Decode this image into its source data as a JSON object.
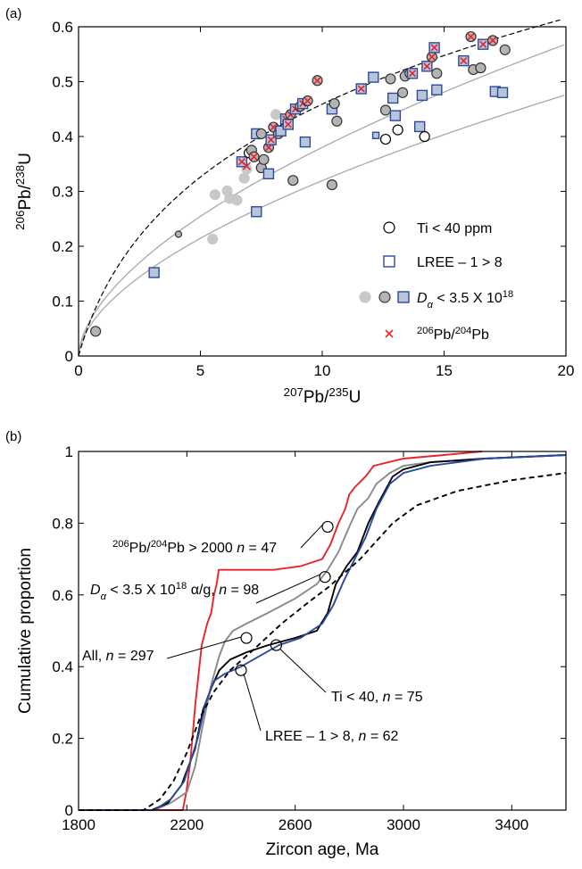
{
  "panel_labels": {
    "a": "(a)",
    "b": "(b)"
  },
  "colors": {
    "red": "#e8242a",
    "blue": "#2b4aa0",
    "gray": "#8a8a8a",
    "black": "#000000",
    "lightgray": "#c8c8c8",
    "fillgray": "#b4b4b4",
    "bluefill": "#b8c4d8"
  },
  "chart_data": [
    {
      "type": "scatter",
      "panel": "(a)",
      "xlabel": "207Pb/235U",
      "ylabel": "206Pb/238U",
      "xlim": [
        0,
        20
      ],
      "ylim": [
        0,
        0.6
      ],
      "xticks": [
        "0",
        "5",
        "10",
        "15",
        "20"
      ],
      "yticks": [
        "0",
        "0.1",
        "0.2",
        "0.3",
        "0.4",
        "0.5",
        "0.6"
      ],
      "legend_position": "bottom-right",
      "legend": [
        {
          "marker": "open-circle",
          "label": "Ti < 40 ppm"
        },
        {
          "marker": "open-square-blue",
          "label": "LREE – 1 > 8"
        },
        {
          "marker": "gray-symbols",
          "label": "Dα < 3.5 X 10^18"
        },
        {
          "marker": "red-cross",
          "label": "206Pb/204Pb"
        }
      ],
      "curves": [
        {
          "style": "concordia-dashed",
          "color": "black",
          "dash": true
        },
        {
          "style": "upper-envelope",
          "color": "gray"
        },
        {
          "style": "lower-envelope",
          "color": "gray"
        }
      ],
      "points": [
        {
          "x": 0.7,
          "y": 0.045,
          "s": "grey_c"
        },
        {
          "x": 3.1,
          "y": 0.152,
          "s": "bsq_gray"
        },
        {
          "x": 4.1,
          "y": 0.222,
          "s": "grey_c_small"
        },
        {
          "x": 5.5,
          "y": 0.213,
          "s": "lg_c"
        },
        {
          "x": 5.6,
          "y": 0.294,
          "s": "lg_c"
        },
        {
          "x": 6.1,
          "y": 0.301,
          "s": "lg_c"
        },
        {
          "x": 6.2,
          "y": 0.287,
          "s": "lg_c"
        },
        {
          "x": 6.5,
          "y": 0.284,
          "s": "lg_c"
        },
        {
          "x": 6.8,
          "y": 0.324,
          "s": "lg_c"
        },
        {
          "x": 6.9,
          "y": 0.341,
          "s": "lg_c"
        },
        {
          "x": 6.7,
          "y": 0.354,
          "s": "bsq_x"
        },
        {
          "x": 6.9,
          "y": 0.346,
          "s": "x"
        },
        {
          "x": 7.0,
          "y": 0.37,
          "s": "open_c"
        },
        {
          "x": 7.1,
          "y": 0.375,
          "s": "grey_c"
        },
        {
          "x": 7.2,
          "y": 0.363,
          "s": "cx"
        },
        {
          "x": 7.3,
          "y": 0.263,
          "s": "bsq_gray"
        },
        {
          "x": 7.3,
          "y": 0.405,
          "s": "bsq_gray"
        },
        {
          "x": 7.5,
          "y": 0.343,
          "s": "grey_c"
        },
        {
          "x": 7.5,
          "y": 0.405,
          "s": "grey_c"
        },
        {
          "x": 7.6,
          "y": 0.358,
          "s": "grey_c"
        },
        {
          "x": 7.8,
          "y": 0.332,
          "s": "bsq_gray"
        },
        {
          "x": 7.8,
          "y": 0.38,
          "s": "cx"
        },
        {
          "x": 7.9,
          "y": 0.394,
          "s": "bsq_x"
        },
        {
          "x": 8.0,
          "y": 0.417,
          "s": "cx"
        },
        {
          "x": 8.1,
          "y": 0.44,
          "s": "lg_c"
        },
        {
          "x": 8.2,
          "y": 0.405,
          "s": "cx"
        },
        {
          "x": 8.3,
          "y": 0.41,
          "s": "bsq_gray"
        },
        {
          "x": 8.5,
          "y": 0.432,
          "s": "bsq_x"
        },
        {
          "x": 8.6,
          "y": 0.422,
          "s": "bsq_x"
        },
        {
          "x": 8.7,
          "y": 0.44,
          "s": "cx"
        },
        {
          "x": 8.9,
          "y": 0.45,
          "s": "bsq_x"
        },
        {
          "x": 8.8,
          "y": 0.32,
          "s": "grey_c"
        },
        {
          "x": 9.1,
          "y": 0.455,
          "s": "cx"
        },
        {
          "x": 9.2,
          "y": 0.46,
          "s": "bsq_x"
        },
        {
          "x": 9.3,
          "y": 0.39,
          "s": "bsq_gray"
        },
        {
          "x": 9.4,
          "y": 0.465,
          "s": "cx"
        },
        {
          "x": 9.8,
          "y": 0.502,
          "s": "cx"
        },
        {
          "x": 10.4,
          "y": 0.312,
          "s": "grey_c"
        },
        {
          "x": 10.4,
          "y": 0.45,
          "s": "bsq_gray"
        },
        {
          "x": 10.5,
          "y": 0.46,
          "s": "grey_c"
        },
        {
          "x": 10.6,
          "y": 0.428,
          "s": "grey_c"
        },
        {
          "x": 11.6,
          "y": 0.487,
          "s": "bsq_x"
        },
        {
          "x": 12.1,
          "y": 0.508,
          "s": "bsq_gray"
        },
        {
          "x": 12.2,
          "y": 0.402,
          "s": "bsq_gray_small"
        },
        {
          "x": 12.6,
          "y": 0.395,
          "s": "open_c"
        },
        {
          "x": 12.6,
          "y": 0.448,
          "s": "grey_c"
        },
        {
          "x": 12.8,
          "y": 0.505,
          "s": "grey_c"
        },
        {
          "x": 12.9,
          "y": 0.47,
          "s": "bsq_gray"
        },
        {
          "x": 13.0,
          "y": 0.438,
          "s": "bsq_gray"
        },
        {
          "x": 13.1,
          "y": 0.412,
          "s": "open_c"
        },
        {
          "x": 13.3,
          "y": 0.48,
          "s": "grey_c"
        },
        {
          "x": 13.4,
          "y": 0.51,
          "s": "grey_c"
        },
        {
          "x": 13.6,
          "y": 0.515,
          "s": "cx"
        },
        {
          "x": 13.7,
          "y": 0.515,
          "s": "bsq_x"
        },
        {
          "x": 14.0,
          "y": 0.418,
          "s": "bsq_gray"
        },
        {
          "x": 14.1,
          "y": 0.475,
          "s": "bsq_gray"
        },
        {
          "x": 14.2,
          "y": 0.4,
          "s": "open_c"
        },
        {
          "x": 14.3,
          "y": 0.528,
          "s": "bsq_x"
        },
        {
          "x": 14.5,
          "y": 0.545,
          "s": "cx"
        },
        {
          "x": 14.6,
          "y": 0.562,
          "s": "bsq_x"
        },
        {
          "x": 14.7,
          "y": 0.515,
          "s": "grey_c"
        },
        {
          "x": 14.7,
          "y": 0.485,
          "s": "bsq_gray"
        },
        {
          "x": 15.8,
          "y": 0.538,
          "s": "bsq_x"
        },
        {
          "x": 16.1,
          "y": 0.582,
          "s": "cx"
        },
        {
          "x": 16.2,
          "y": 0.522,
          "s": "grey_c"
        },
        {
          "x": 16.5,
          "y": 0.525,
          "s": "grey_c"
        },
        {
          "x": 16.6,
          "y": 0.568,
          "s": "bsq_x"
        },
        {
          "x": 17.0,
          "y": 0.575,
          "s": "cx"
        },
        {
          "x": 17.1,
          "y": 0.482,
          "s": "bsq_gray"
        },
        {
          "x": 17.4,
          "y": 0.48,
          "s": "bsq_gray"
        },
        {
          "x": 17.5,
          "y": 0.558,
          "s": "grey_c"
        }
      ]
    },
    {
      "type": "line",
      "panel": "(b)",
      "xlabel": "Zircon age, Ma",
      "ylabel": "Cumulative proportion",
      "xlim": [
        1800,
        3600
      ],
      "ylim": [
        0,
        1
      ],
      "xticks": [
        "1800",
        "2200",
        "2600",
        "3000",
        "3400"
      ],
      "yticks": [
        "0",
        "0.2",
        "0.4",
        "0.6",
        "0.8",
        "1"
      ],
      "series": [
        {
          "id": "red",
          "color": "red",
          "dash": false,
          "x": [
            2185,
            2198,
            2212,
            2232,
            2255,
            2275,
            2290,
            2300,
            2310,
            2318,
            2400,
            2520,
            2620,
            2700,
            2730,
            2760,
            2785,
            2800,
            2820,
            2860,
            2890,
            3000,
            3150,
            3290
          ],
          "y": [
            0,
            0.05,
            0.13,
            0.3,
            0.46,
            0.52,
            0.55,
            0.6,
            0.63,
            0.67,
            0.67,
            0.67,
            0.68,
            0.7,
            0.74,
            0.8,
            0.84,
            0.88,
            0.9,
            0.93,
            0.96,
            0.98,
            0.99,
            1.0
          ]
        },
        {
          "id": "gray",
          "color": "gray",
          "dash": false,
          "x": [
            2080,
            2140,
            2200,
            2230,
            2260,
            2290,
            2320,
            2340,
            2370,
            2420,
            2500,
            2600,
            2680,
            2720,
            2760,
            2800,
            2830,
            2870,
            2900,
            2950,
            3000,
            3100,
            3300,
            3600
          ],
          "y": [
            0,
            0.02,
            0.05,
            0.12,
            0.24,
            0.35,
            0.43,
            0.47,
            0.5,
            0.52,
            0.55,
            0.59,
            0.63,
            0.67,
            0.72,
            0.79,
            0.84,
            0.87,
            0.91,
            0.94,
            0.96,
            0.97,
            0.98,
            0.99
          ]
        },
        {
          "id": "black",
          "color": "black",
          "dash": false,
          "x": [
            2070,
            2130,
            2180,
            2230,
            2260,
            2290,
            2320,
            2360,
            2420,
            2500,
            2600,
            2680,
            2720,
            2750,
            2790,
            2830,
            2870,
            2910,
            2960,
            3000,
            3100,
            3300,
            3600
          ],
          "y": [
            0,
            0.02,
            0.07,
            0.17,
            0.28,
            0.34,
            0.39,
            0.42,
            0.44,
            0.46,
            0.48,
            0.5,
            0.55,
            0.63,
            0.68,
            0.72,
            0.8,
            0.86,
            0.93,
            0.95,
            0.97,
            0.98,
            0.99
          ]
        },
        {
          "id": "blue",
          "color": "blue",
          "dash": false,
          "x": [
            2080,
            2140,
            2190,
            2240,
            2270,
            2300,
            2340,
            2400,
            2470,
            2540,
            2620,
            2700,
            2740,
            2780,
            2820,
            2860,
            2900,
            2950,
            3000,
            3100,
            3300,
            3600
          ],
          "y": [
            0,
            0.03,
            0.08,
            0.2,
            0.3,
            0.36,
            0.38,
            0.4,
            0.43,
            0.46,
            0.48,
            0.52,
            0.57,
            0.64,
            0.7,
            0.76,
            0.84,
            0.91,
            0.94,
            0.96,
            0.98,
            0.99
          ]
        },
        {
          "id": "dashed",
          "color": "black",
          "dash": true,
          "x": [
            2040,
            2100,
            2150,
            2200,
            2250,
            2300,
            2360,
            2450,
            2550,
            2650,
            2720,
            2780,
            2840,
            2900,
            2960,
            3050,
            3200,
            3400,
            3600
          ],
          "y": [
            0,
            0.03,
            0.08,
            0.16,
            0.26,
            0.33,
            0.39,
            0.45,
            0.52,
            0.58,
            0.62,
            0.66,
            0.7,
            0.75,
            0.8,
            0.85,
            0.89,
            0.92,
            0.94
          ]
        }
      ],
      "annotations": [
        {
          "series": "red",
          "at": [
            2720,
            0.79
          ],
          "text_parts": [
            {
              "sup": "206"
            },
            {
              "t": "Pb/"
            },
            {
              "sup": "204"
            },
            {
              "t": "Pb > 2000 "
            },
            {
              "i": "n"
            },
            {
              "t": " = 47"
            }
          ]
        },
        {
          "series": "gray",
          "at": [
            2710,
            0.65
          ],
          "text_parts": [
            {
              "i": "D"
            },
            {
              "isub": "α"
            },
            {
              "t": " < 3.5 X 10"
            },
            {
              "sup": "18"
            },
            {
              "t": " α/g, "
            },
            {
              "i": "n"
            },
            {
              "t": " = 98"
            }
          ]
        },
        {
          "series": "dashed",
          "at": [
            2420,
            0.48
          ],
          "text_parts": [
            {
              "t": "All, "
            },
            {
              "i": "n"
            },
            {
              "t": " = 297"
            }
          ]
        },
        {
          "series": "black",
          "at": [
            2530,
            0.46
          ],
          "text_parts": [
            {
              "t": "Ti < 40, "
            },
            {
              "i": "n"
            },
            {
              "t": " = 75"
            }
          ]
        },
        {
          "series": "blue",
          "at": [
            2400,
            0.39
          ],
          "text_parts": [
            {
              "t": "LREE – 1 > 8, "
            },
            {
              "i": "n"
            },
            {
              "t": " = 62"
            }
          ]
        }
      ]
    }
  ]
}
